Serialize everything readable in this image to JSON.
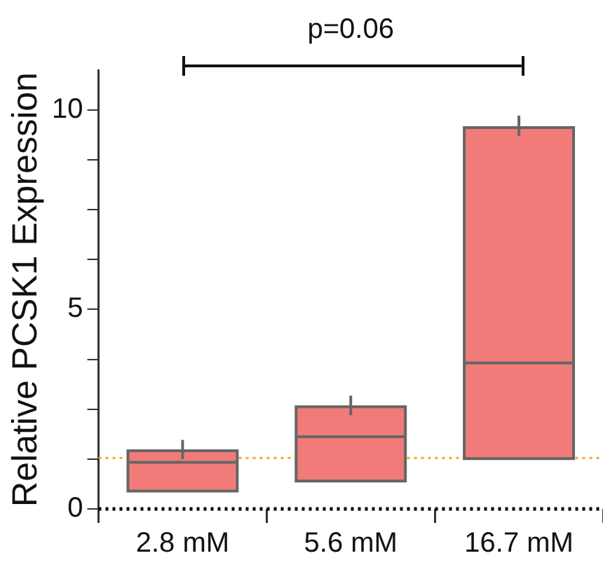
{
  "chart_data": {
    "type": "box",
    "ylabel": "Relative PCSK1 Expression",
    "categories": [
      "2.8 mM",
      "5.6 mM",
      "16.7 mM"
    ],
    "color": "#f07b78",
    "boxes": [
      {
        "low": 0.45,
        "q1": 0.45,
        "median": 1.17,
        "q3": 1.46,
        "high": 1.73
      },
      {
        "low": 0.7,
        "q1": 0.7,
        "median": 1.81,
        "q3": 2.56,
        "high": 2.84
      },
      {
        "low": 1.26,
        "q1": 1.26,
        "median": 3.66,
        "q3": 9.56,
        "high": 9.86
      }
    ],
    "ylim": [
      0,
      11
    ],
    "yticks": [
      0,
      {
        "value": 1.25,
        "label": null
      },
      {
        "value": 2.5,
        "label": null
      },
      {
        "value": 3.75,
        "label": null
      },
      5,
      {
        "value": 6.25,
        "label": null
      },
      {
        "value": 7.5,
        "label": null
      },
      {
        "value": 8.75,
        "label": null
      },
      10
    ],
    "ref_lines": [
      {
        "axis": "y",
        "value": 0,
        "color": "#000000",
        "line_style": "dotted"
      },
      {
        "axis": "y",
        "value": 1.28,
        "color": "#f5a623",
        "line_style": "dotted"
      }
    ],
    "annotations": [
      "p=0.06"
    ],
    "grid": false,
    "legend": false
  }
}
